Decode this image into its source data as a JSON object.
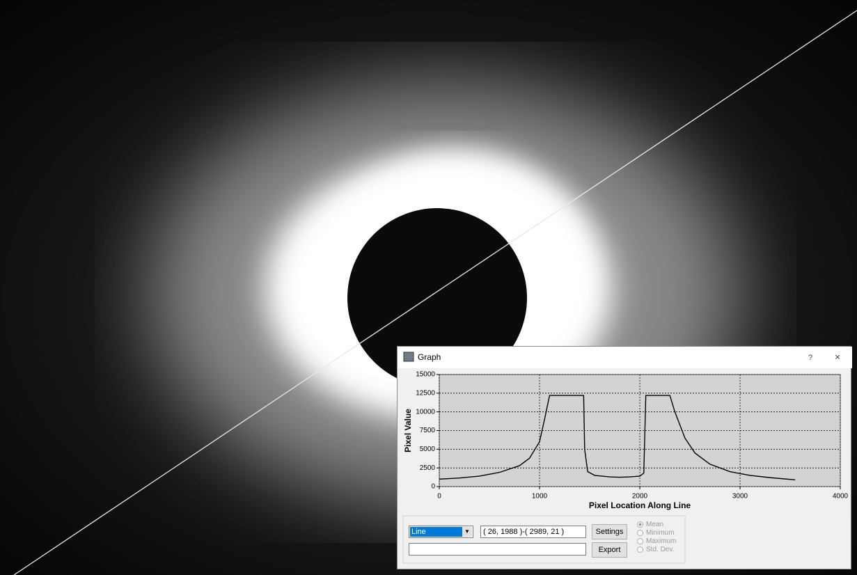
{
  "window": {
    "title": "Graph",
    "help": "?",
    "close": "×"
  },
  "chart_data": {
    "type": "line",
    "xlabel": "Pixel Location Along Line",
    "ylabel": "Pixel Value",
    "xlim": [
      0,
      4000
    ],
    "ylim": [
      0,
      15000
    ],
    "xticks": [
      0,
      1000,
      2000,
      3000,
      4000
    ],
    "yticks": [
      0,
      2500,
      5000,
      7500,
      10000,
      12500,
      15000
    ],
    "grid": true,
    "x": [
      0,
      200,
      400,
      600,
      800,
      900,
      1000,
      1050,
      1100,
      1200,
      1300,
      1440,
      1450,
      1480,
      1550,
      1700,
      1800,
      1900,
      2000,
      2040,
      2060,
      2200,
      2300,
      2350,
      2450,
      2550,
      2700,
      2900,
      3100,
      3300,
      3550
    ],
    "series": [
      {
        "color": "#000000",
        "values": [
          1000,
          1150,
          1400,
          1900,
          2800,
          3800,
          6000,
          9000,
          12200,
          12200,
          12200,
          12200,
          5000,
          2000,
          1500,
          1300,
          1250,
          1300,
          1400,
          1800,
          12200,
          12200,
          12200,
          10000,
          6500,
          4500,
          3000,
          2000,
          1500,
          1200,
          900
        ]
      }
    ]
  },
  "controls": {
    "mode": "Line",
    "coords": "( 26, 1988 )-( 2989, 21 )",
    "settings": "Settings",
    "export": "Export",
    "stats": [
      "Mean",
      "Minimum",
      "Maximum",
      "Std. Dev."
    ]
  }
}
